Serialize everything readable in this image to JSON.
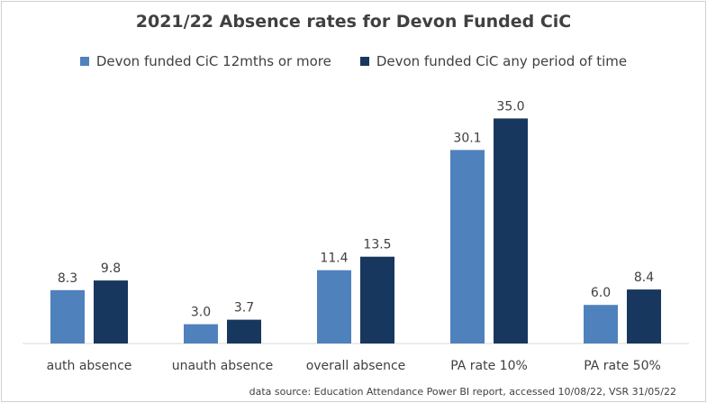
{
  "chart_data": {
    "type": "bar",
    "title": "2021/22 Absence rates for Devon Funded CiC",
    "categories": [
      "auth absence",
      "unauth absence",
      "overall absence",
      "PA rate 10%",
      "PA rate 50%"
    ],
    "series": [
      {
        "name": "Devon funded CiC 12mths or more",
        "color": "#4f81bd",
        "values": [
          8.3,
          3.0,
          11.4,
          30.1,
          6.0
        ]
      },
      {
        "name": "Devon funded CiC any period of time",
        "color": "#17375e",
        "values": [
          9.8,
          3.7,
          13.5,
          35.0,
          8.4
        ]
      }
    ],
    "ylim": [
      0,
      38
    ],
    "grid": false,
    "legend_position": "top",
    "data_labels": true,
    "source_note": "data source: Education Attendance Power BI report, accessed 10/08/22, VSR 31/05/22"
  }
}
